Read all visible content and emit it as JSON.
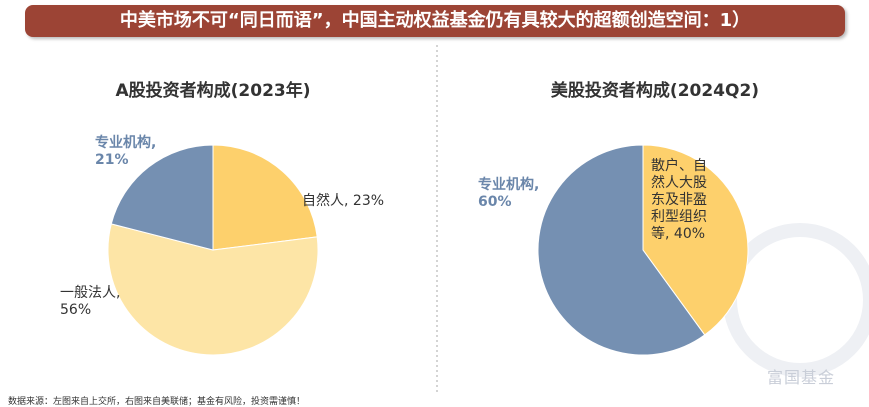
{
  "header": {
    "title": "中美市场不可“同日而语”，中国主动权益基金仍有具较大的超额创造空间：1）"
  },
  "chart_data": [
    {
      "type": "pie",
      "title": "A股投资者构成(2023年)",
      "categories": [
        "自然人",
        "一般法人",
        "专业机构"
      ],
      "values": [
        23,
        56,
        21
      ],
      "value_labels": [
        "23%",
        "56%",
        "21%"
      ],
      "colors": [
        "#fdd06c",
        "#fde5a6",
        "#7590b2"
      ]
    },
    {
      "type": "pie",
      "title": "美股投资者构成(2024Q2)",
      "categories": [
        "散户、自然人大股东及非盈利型组织等",
        "专业机构"
      ],
      "values": [
        40,
        60
      ],
      "value_labels": [
        "40%",
        "60%"
      ],
      "colors": [
        "#fdd06c",
        "#7590b2"
      ]
    }
  ],
  "footer": {
    "source": "数据来源：左图来自上交所，右图来自美联储；基金有风险，投资需谨慎！"
  },
  "watermark": "富国基金"
}
